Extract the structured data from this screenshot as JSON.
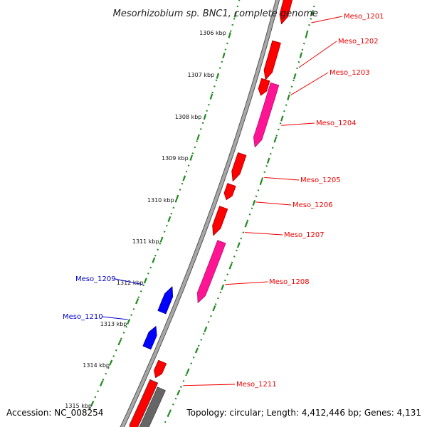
{
  "title": "Mesorhizobium sp. BNC1, complete genome",
  "footer": {
    "accession": "Accession: NC_008254",
    "topology": "Topology: circular; Length: 4,412,446 bp; Genes: 4,131"
  },
  "ticks": [
    "1306 kbp",
    "1307 kbp",
    "1308 kbp",
    "1309 kbp",
    "1310 kbp",
    "1311 kbp",
    "1312 kbp",
    "1313 kbp",
    "1314 kbp",
    "1315 kbp"
  ],
  "colors": {
    "forward_cds": "#ff0000",
    "forward_other": "#ff1493",
    "reverse_cds": "#0000ff",
    "reverse_other": "#666666",
    "backbone": "#888888",
    "tick_marks": "#228b22",
    "label_forward": "#ee0000",
    "label_reverse": "#0000cc"
  },
  "genes": [
    {
      "name": "Meso_1201",
      "strand": "forward",
      "kind": "cds"
    },
    {
      "name": "Meso_1202",
      "strand": "forward",
      "kind": "cds"
    },
    {
      "name": "Meso_1203",
      "strand": "forward",
      "kind": "cds"
    },
    {
      "name": "Meso_1204",
      "strand": "forward",
      "kind": "other"
    },
    {
      "name": "Meso_1205",
      "strand": "forward",
      "kind": "cds"
    },
    {
      "name": "Meso_1206",
      "strand": "forward",
      "kind": "cds"
    },
    {
      "name": "Meso_1207",
      "strand": "forward",
      "kind": "cds"
    },
    {
      "name": "Meso_1208",
      "strand": "forward",
      "kind": "other"
    },
    {
      "name": "Meso_1209",
      "strand": "reverse",
      "kind": "cds"
    },
    {
      "name": "Meso_1210",
      "strand": "reverse",
      "kind": "cds"
    },
    {
      "name": "Meso_1211",
      "strand": "forward",
      "kind": "cds"
    }
  ]
}
